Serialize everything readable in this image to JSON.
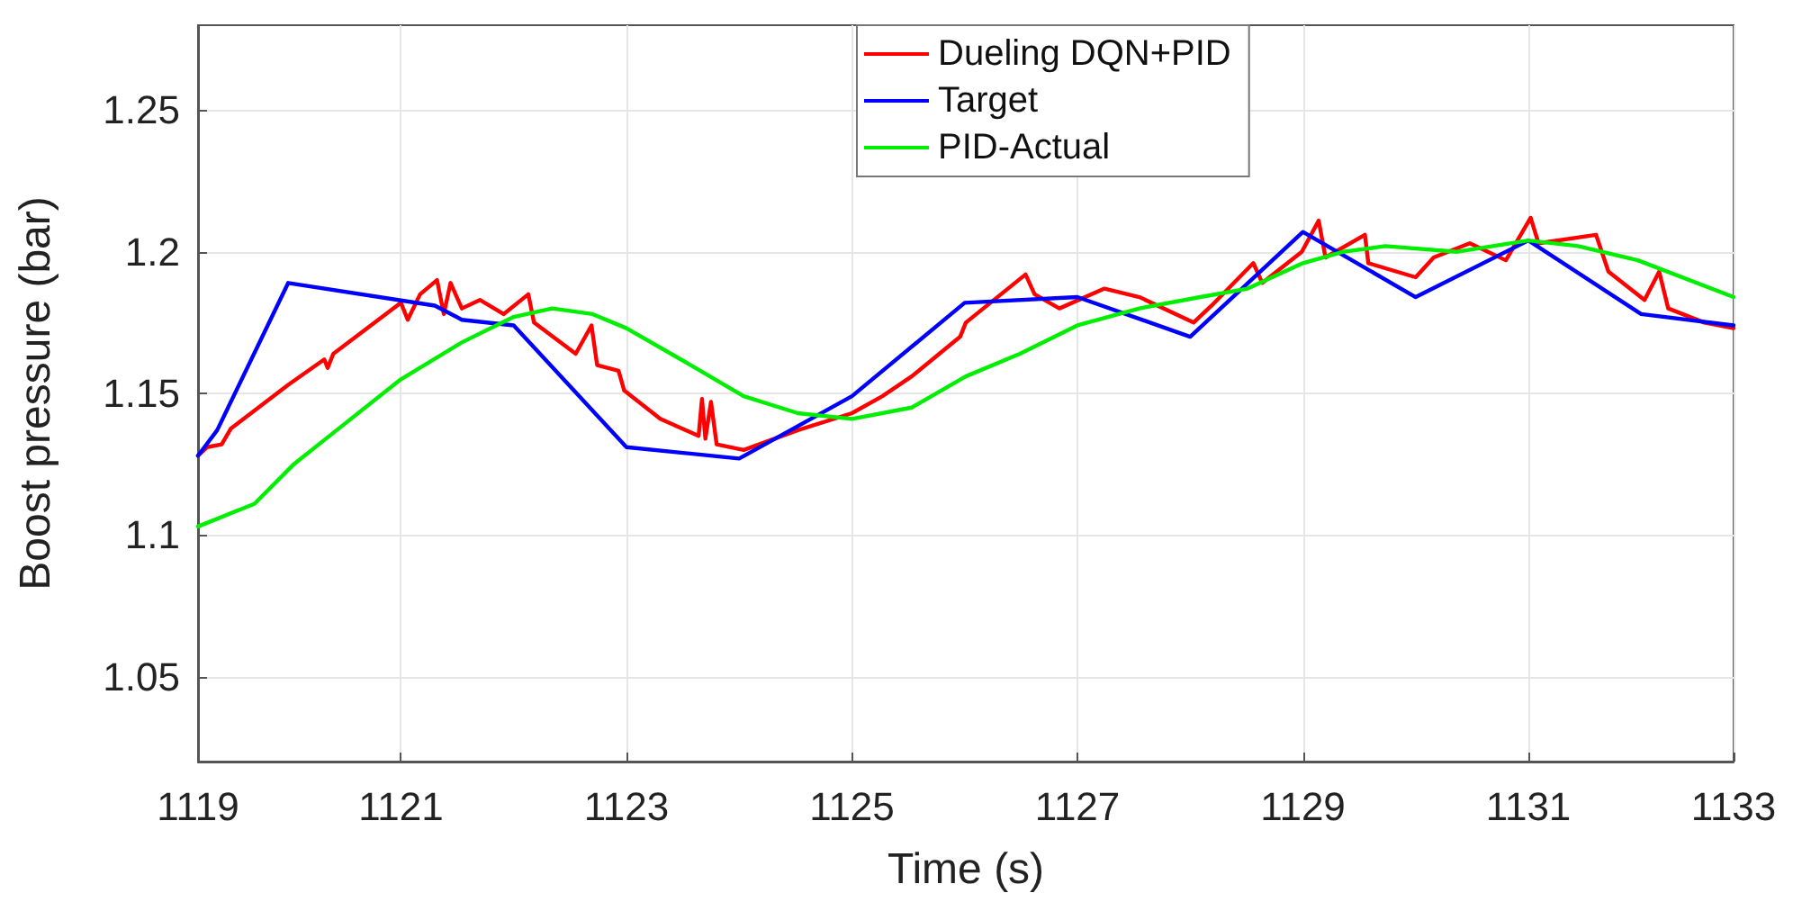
{
  "chart_data": {
    "type": "line",
    "xlabel": "Time (s)",
    "ylabel": "Boost pressure (bar)",
    "xlim": [
      1119.2,
      1132.82
    ],
    "xticks": [
      {
        "value": 1119.2,
        "label": "1119"
      },
      1121,
      1123,
      1125,
      1127,
      1129,
      1131,
      {
        "value": 1132.82,
        "label": "1133"
      }
    ],
    "ylim": [
      1.02,
      1.28
    ],
    "yticks": [
      1.05,
      1.1,
      1.15,
      1.2,
      1.25
    ],
    "grid": true,
    "legend": "top",
    "marker": "none",
    "line_style": "solid",
    "series": [
      {
        "name": "Dueling DQN+PID",
        "color": "#ff0000",
        "x": [
          1119.2,
          1119.28,
          1119.41,
          1119.49,
          1120.0,
          1120.32,
          1120.35,
          1120.4,
          1121.0,
          1121.06,
          1121.17,
          1121.32,
          1121.38,
          1121.44,
          1121.54,
          1121.7,
          1121.91,
          1122.13,
          1122.18,
          1122.55,
          1122.69,
          1122.74,
          1122.93,
          1122.98,
          1123.3,
          1123.64,
          1123.67,
          1123.7,
          1123.75,
          1123.8,
          1124.04,
          1124.52,
          1125.0,
          1125.27,
          1125.53,
          1125.96,
          1126.01,
          1126.54,
          1126.62,
          1126.84,
          1127.24,
          1127.55,
          1128.03,
          1128.19,
          1128.56,
          1128.64,
          1128.99,
          1129.14,
          1129.2,
          1129.55,
          1129.58,
          1130.0,
          1130.16,
          1130.48,
          1130.8,
          1131.02,
          1131.09,
          1131.6,
          1131.71,
          1132.03,
          1132.16,
          1132.24,
          1132.56,
          1132.82
        ],
        "values": [
          1.128,
          1.131,
          1.132,
          1.1375,
          1.153,
          1.162,
          1.159,
          1.164,
          1.182,
          1.176,
          1.185,
          1.19,
          1.178,
          1.189,
          1.18,
          1.183,
          1.178,
          1.185,
          1.175,
          1.164,
          1.174,
          1.16,
          1.158,
          1.151,
          1.141,
          1.135,
          1.148,
          1.134,
          1.147,
          1.132,
          1.13,
          1.137,
          1.143,
          1.149,
          1.156,
          1.17,
          1.175,
          1.192,
          1.185,
          1.18,
          1.187,
          1.184,
          1.175,
          1.181,
          1.196,
          1.189,
          1.2,
          1.211,
          1.198,
          1.206,
          1.196,
          1.191,
          1.198,
          1.203,
          1.197,
          1.212,
          1.203,
          1.206,
          1.193,
          1.183,
          1.193,
          1.18,
          1.175,
          1.173
        ]
      },
      {
        "name": "Target",
        "color": "#0000ff",
        "x": [
          1119.2,
          1119.37,
          1120.0,
          1121.3,
          1121.54,
          1122.0,
          1123.0,
          1124.0,
          1125.0,
          1126.0,
          1127.0,
          1128.0,
          1129.0,
          1130.0,
          1131.0,
          1132.0,
          1132.82
        ],
        "values": [
          1.128,
          1.137,
          1.189,
          1.181,
          1.176,
          1.174,
          1.131,
          1.127,
          1.149,
          1.182,
          1.184,
          1.17,
          1.207,
          1.184,
          1.204,
          1.178,
          1.174
        ]
      },
      {
        "name": "PID-Actual",
        "color": "#00ee00",
        "x": [
          1119.2,
          1119.7,
          1120.05,
          1120.43,
          1121.0,
          1121.54,
          1122.0,
          1122.34,
          1122.7,
          1123.0,
          1123.57,
          1124.04,
          1124.52,
          1125.0,
          1125.53,
          1126.01,
          1126.49,
          1127.0,
          1127.55,
          1128.09,
          1128.51,
          1129.0,
          1129.36,
          1129.73,
          1130.37,
          1131.0,
          1131.44,
          1131.97,
          1132.82
        ],
        "values": [
          1.103,
          1.111,
          1.125,
          1.137,
          1.155,
          1.168,
          1.177,
          1.18,
          1.178,
          1.173,
          1.16,
          1.149,
          1.143,
          1.141,
          1.145,
          1.156,
          1.164,
          1.174,
          1.18,
          1.184,
          1.187,
          1.196,
          1.2,
          1.202,
          1.2,
          1.204,
          1.202,
          1.197,
          1.184
        ]
      }
    ]
  }
}
